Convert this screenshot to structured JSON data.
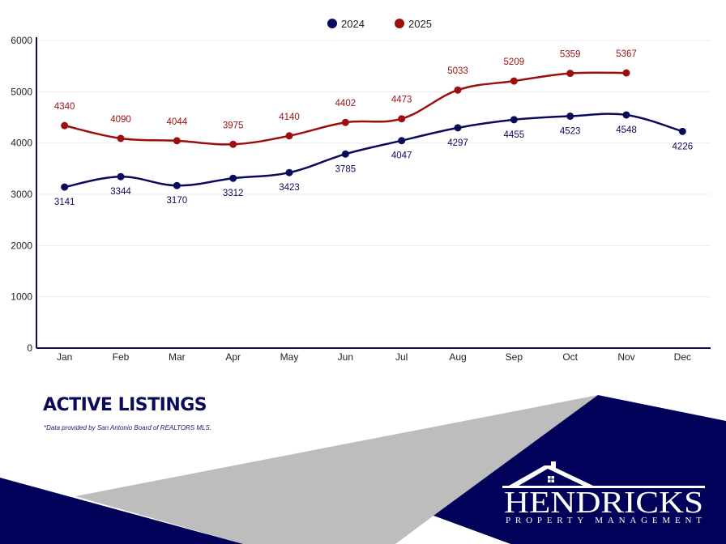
{
  "legend": [
    {
      "label": "2024",
      "color": "#0b0b5c"
    },
    {
      "label": "2025",
      "color": "#9b0f0f"
    }
  ],
  "footer": {
    "title": "ACTIVE LISTINGS",
    "note": "*Data provided by San Antonio Board of REALTORS MLS."
  },
  "brand": {
    "name": "HENDRICKS",
    "tagline": "PROPERTY MANAGEMENT",
    "navy": "#01015a",
    "gray": "#bdbdbd"
  },
  "chart_data": {
    "type": "line",
    "title": "Active Listings",
    "xlabel": "",
    "ylabel": "",
    "categories": [
      "Jan",
      "Feb",
      "Mar",
      "Apr",
      "May",
      "Jun",
      "Jul",
      "Aug",
      "Sep",
      "Oct",
      "Nov",
      "Dec"
    ],
    "yticks": [
      0,
      1000,
      2000,
      3000,
      4000,
      5000,
      6000
    ],
    "ylim": [
      0,
      6000
    ],
    "grid": true,
    "legend_position": "top",
    "series": [
      {
        "name": "2024",
        "color": "#0b0b5c",
        "values": [
          3141,
          3344,
          3170,
          3312,
          3423,
          3785,
          4047,
          4297,
          4455,
          4523,
          4548,
          4226
        ]
      },
      {
        "name": "2025",
        "color": "#9b0f0f",
        "values": [
          4340,
          4090,
          4044,
          3975,
          4140,
          4402,
          4473,
          5033,
          5209,
          5359,
          5367,
          null
        ]
      }
    ]
  }
}
